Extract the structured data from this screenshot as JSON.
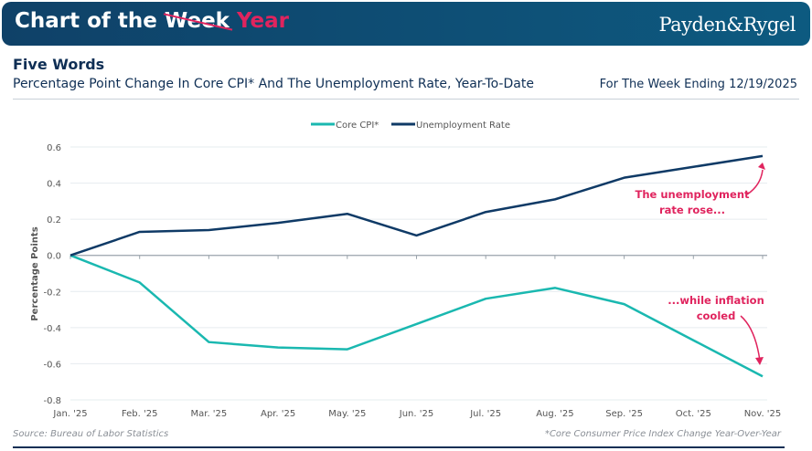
{
  "banner": {
    "title_prefix": "Chart of the",
    "struck_word": "Week",
    "replacement_word": "Year",
    "logo": "Payden&Rygel"
  },
  "header": {
    "title": "Five Words",
    "subtitle": "Percentage Point Change In Core CPI* And The Unemployment Rate, Year-To-Date",
    "date_note": "For The Week Ending 12/19/2025"
  },
  "footer": {
    "source": "Source: Bureau of Labor Statistics",
    "footnote": "*Core Consumer Price Index  Change Year-Over-Year"
  },
  "colors": {
    "accent": "#e0245e",
    "navy": "#0f2f55",
    "teal": "#1ab8b0"
  },
  "chart_data": {
    "type": "line",
    "ylabel": "Percentage Points",
    "ylim": [
      -0.8,
      0.6
    ],
    "yticks": [
      "0.6",
      "0.4",
      "0.2",
      "0.0",
      "-0.2",
      "-0.4",
      "-0.6",
      "-0.8"
    ],
    "categories": [
      "Jan. '25",
      "Feb. '25",
      "Mar. '25",
      "Apr. '25",
      "May. '25",
      "Jun. '25",
      "Jul. '25",
      "Aug. '25",
      "Sep. '25",
      "Oct. '25",
      "Nov. '25"
    ],
    "legend_position": "top-center",
    "grid": true,
    "series": [
      {
        "name": "Core CPI*",
        "color": "#1ab8b0",
        "values": [
          0,
          -0.15,
          -0.48,
          -0.51,
          -0.52,
          -0.38,
          -0.24,
          -0.18,
          -0.27,
          -0.47,
          -0.67
        ]
      },
      {
        "name": "Unemployment Rate",
        "color": "#0f3a66",
        "values": [
          0,
          0.13,
          0.14,
          0.18,
          0.23,
          0.11,
          0.24,
          0.31,
          0.43,
          0.49,
          0.55
        ]
      }
    ],
    "annotations": [
      {
        "lines": [
          "The unemployment",
          "rate rose..."
        ],
        "series": 1
      },
      {
        "lines": [
          "...while inflation",
          "cooled"
        ],
        "series": 0
      }
    ]
  }
}
